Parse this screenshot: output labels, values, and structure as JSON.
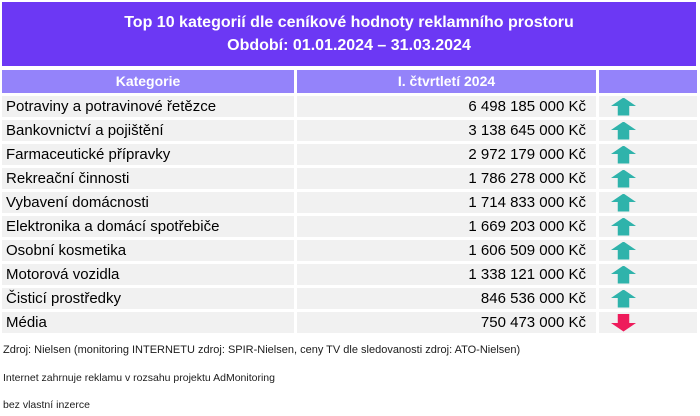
{
  "title": {
    "line1": "Top 10 kategorií dle ceníkové hodnoty reklamního prostoru",
    "line2": "Období: 01.01.2024 – 31.03.2024"
  },
  "table": {
    "headers": {
      "category": "Kategorie",
      "value": "I. čtvrtletí 2024",
      "trend": ""
    },
    "rows": [
      {
        "category": "Potraviny a potravinové řetězce",
        "value": "6 498 185 000 Kč",
        "trend": "up"
      },
      {
        "category": "Bankovnictví a pojištění",
        "value": "3 138 645 000 Kč",
        "trend": "up"
      },
      {
        "category": "Farmaceutické přípravky",
        "value": "2 972 179 000 Kč",
        "trend": "up"
      },
      {
        "category": "Rekreační činnosti",
        "value": "1 786 278 000 Kč",
        "trend": "up"
      },
      {
        "category": "Vybavení domácnosti",
        "value": "1 714 833 000 Kč",
        "trend": "up"
      },
      {
        "category": "Elektronika a domácí spotřebiče",
        "value": "1 669 203 000 Kč",
        "trend": "up"
      },
      {
        "category": "Osobní kosmetika",
        "value": "1 606 509 000 Kč",
        "trend": "up"
      },
      {
        "category": "Motorová vozidla",
        "value": "1 338 121 000 Kč",
        "trend": "up"
      },
      {
        "category": "Čisticí prostředky",
        "value": "846 536 000 Kč",
        "trend": "up"
      },
      {
        "category": "Média",
        "value": "750 473 000 Kč",
        "trend": "down"
      }
    ]
  },
  "footer": {
    "line1": "Zdroj: Nielsen (monitoring INTERNETU zdroj: SPIR-Nielsen, ceny TV dle sledovanosti zdroj: ATO-Nielsen)",
    "line2": "Internet zahrnuje reklamu v rozsahu projektu AdMonitoring",
    "line3": "bez vlastní inzerce"
  },
  "icons": {
    "up": "trend-up-arrow-icon",
    "down": "trend-down-arrow-icon"
  },
  "colors": {
    "title_bg": "#6c38f4",
    "header_bg": "#9483fa",
    "row_bg": "#f1f1f1",
    "trend_up": "#2fb3ab",
    "trend_down": "#ee1b5b",
    "title_text": "#ffffff",
    "header_text": "#ffffff"
  }
}
